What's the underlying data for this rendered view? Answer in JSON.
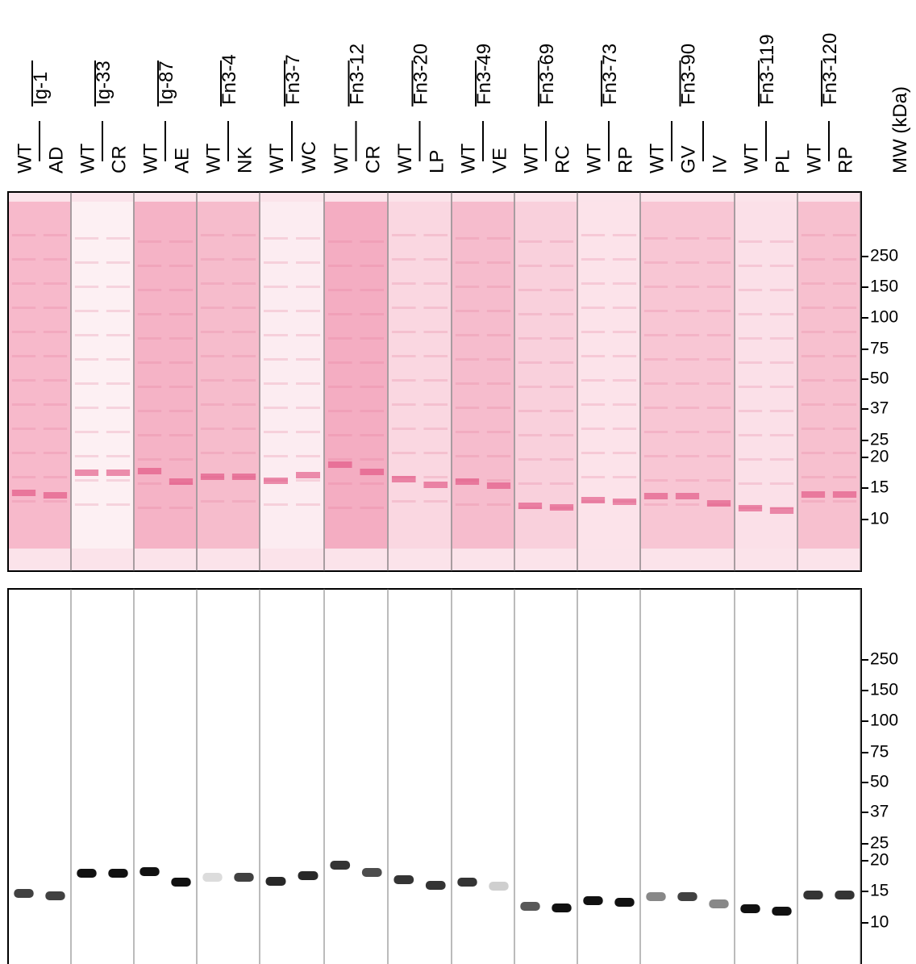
{
  "groups": [
    {
      "name": "Ig-1",
      "lanes": [
        "WT",
        "AD"
      ]
    },
    {
      "name": "Ig-33",
      "lanes": [
        "WT",
        "CR"
      ]
    },
    {
      "name": "Ig-87",
      "lanes": [
        "WT",
        "AE"
      ]
    },
    {
      "name": "Fn3-4",
      "lanes": [
        "WT",
        "NK"
      ]
    },
    {
      "name": "Fn3-7",
      "lanes": [
        "WT",
        "WC"
      ]
    },
    {
      "name": "Fn3-12",
      "lanes": [
        "WT",
        "CR"
      ]
    },
    {
      "name": "Fn3-20",
      "lanes": [
        "WT",
        "LP"
      ]
    },
    {
      "name": "Fn3-49",
      "lanes": [
        "WT",
        "VE"
      ]
    },
    {
      "name": "Fn3-69",
      "lanes": [
        "WT",
        "RC"
      ]
    },
    {
      "name": "Fn3-73",
      "lanes": [
        "WT",
        "RP"
      ]
    },
    {
      "name": "Fn3-90",
      "lanes": [
        "WT",
        "GV",
        "IV"
      ]
    },
    {
      "name": "Fn3-119",
      "lanes": [
        "WT",
        "PL"
      ]
    },
    {
      "name": "Fn3-120",
      "lanes": [
        "WT",
        "RP"
      ]
    }
  ],
  "mw_label": "MW (kDa)",
  "mw_markers": [
    250,
    150,
    100,
    75,
    50,
    37,
    25,
    20,
    15,
    10
  ]
}
